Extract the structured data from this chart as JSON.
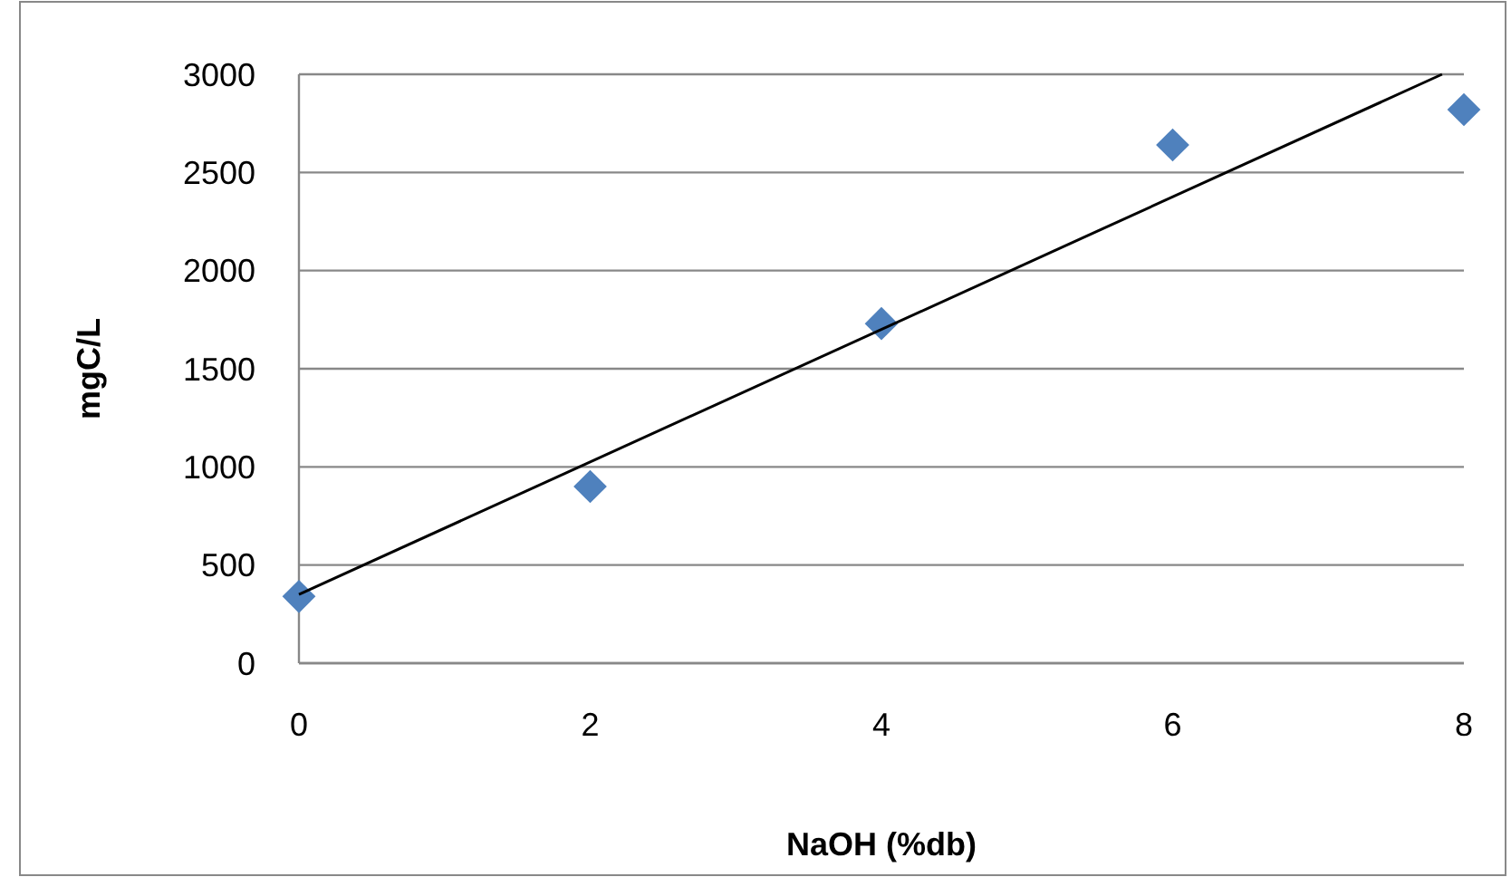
{
  "chart_data": {
    "type": "scatter",
    "xlabel": "NaOH (%db)",
    "ylabel": "mgC/L",
    "xlim": [
      0,
      8
    ],
    "xticks": [
      0,
      2,
      4,
      6,
      8
    ],
    "ylim": [
      0,
      3000
    ],
    "yticks": [
      0,
      500,
      1000,
      1500,
      2000,
      2500,
      3000
    ],
    "grid": "y",
    "marker": "diamond",
    "series": [
      {
        "color": "#4f81bd",
        "x": [
          0,
          2,
          4,
          6,
          8
        ],
        "values": [
          340,
          900,
          1730,
          2640,
          2820
        ]
      },
      {
        "type": "line",
        "color": "#000000",
        "x": [
          0,
          7.85
        ],
        "values": [
          350,
          3000
        ],
        "marker": "none",
        "line_style": "solid"
      }
    ]
  }
}
